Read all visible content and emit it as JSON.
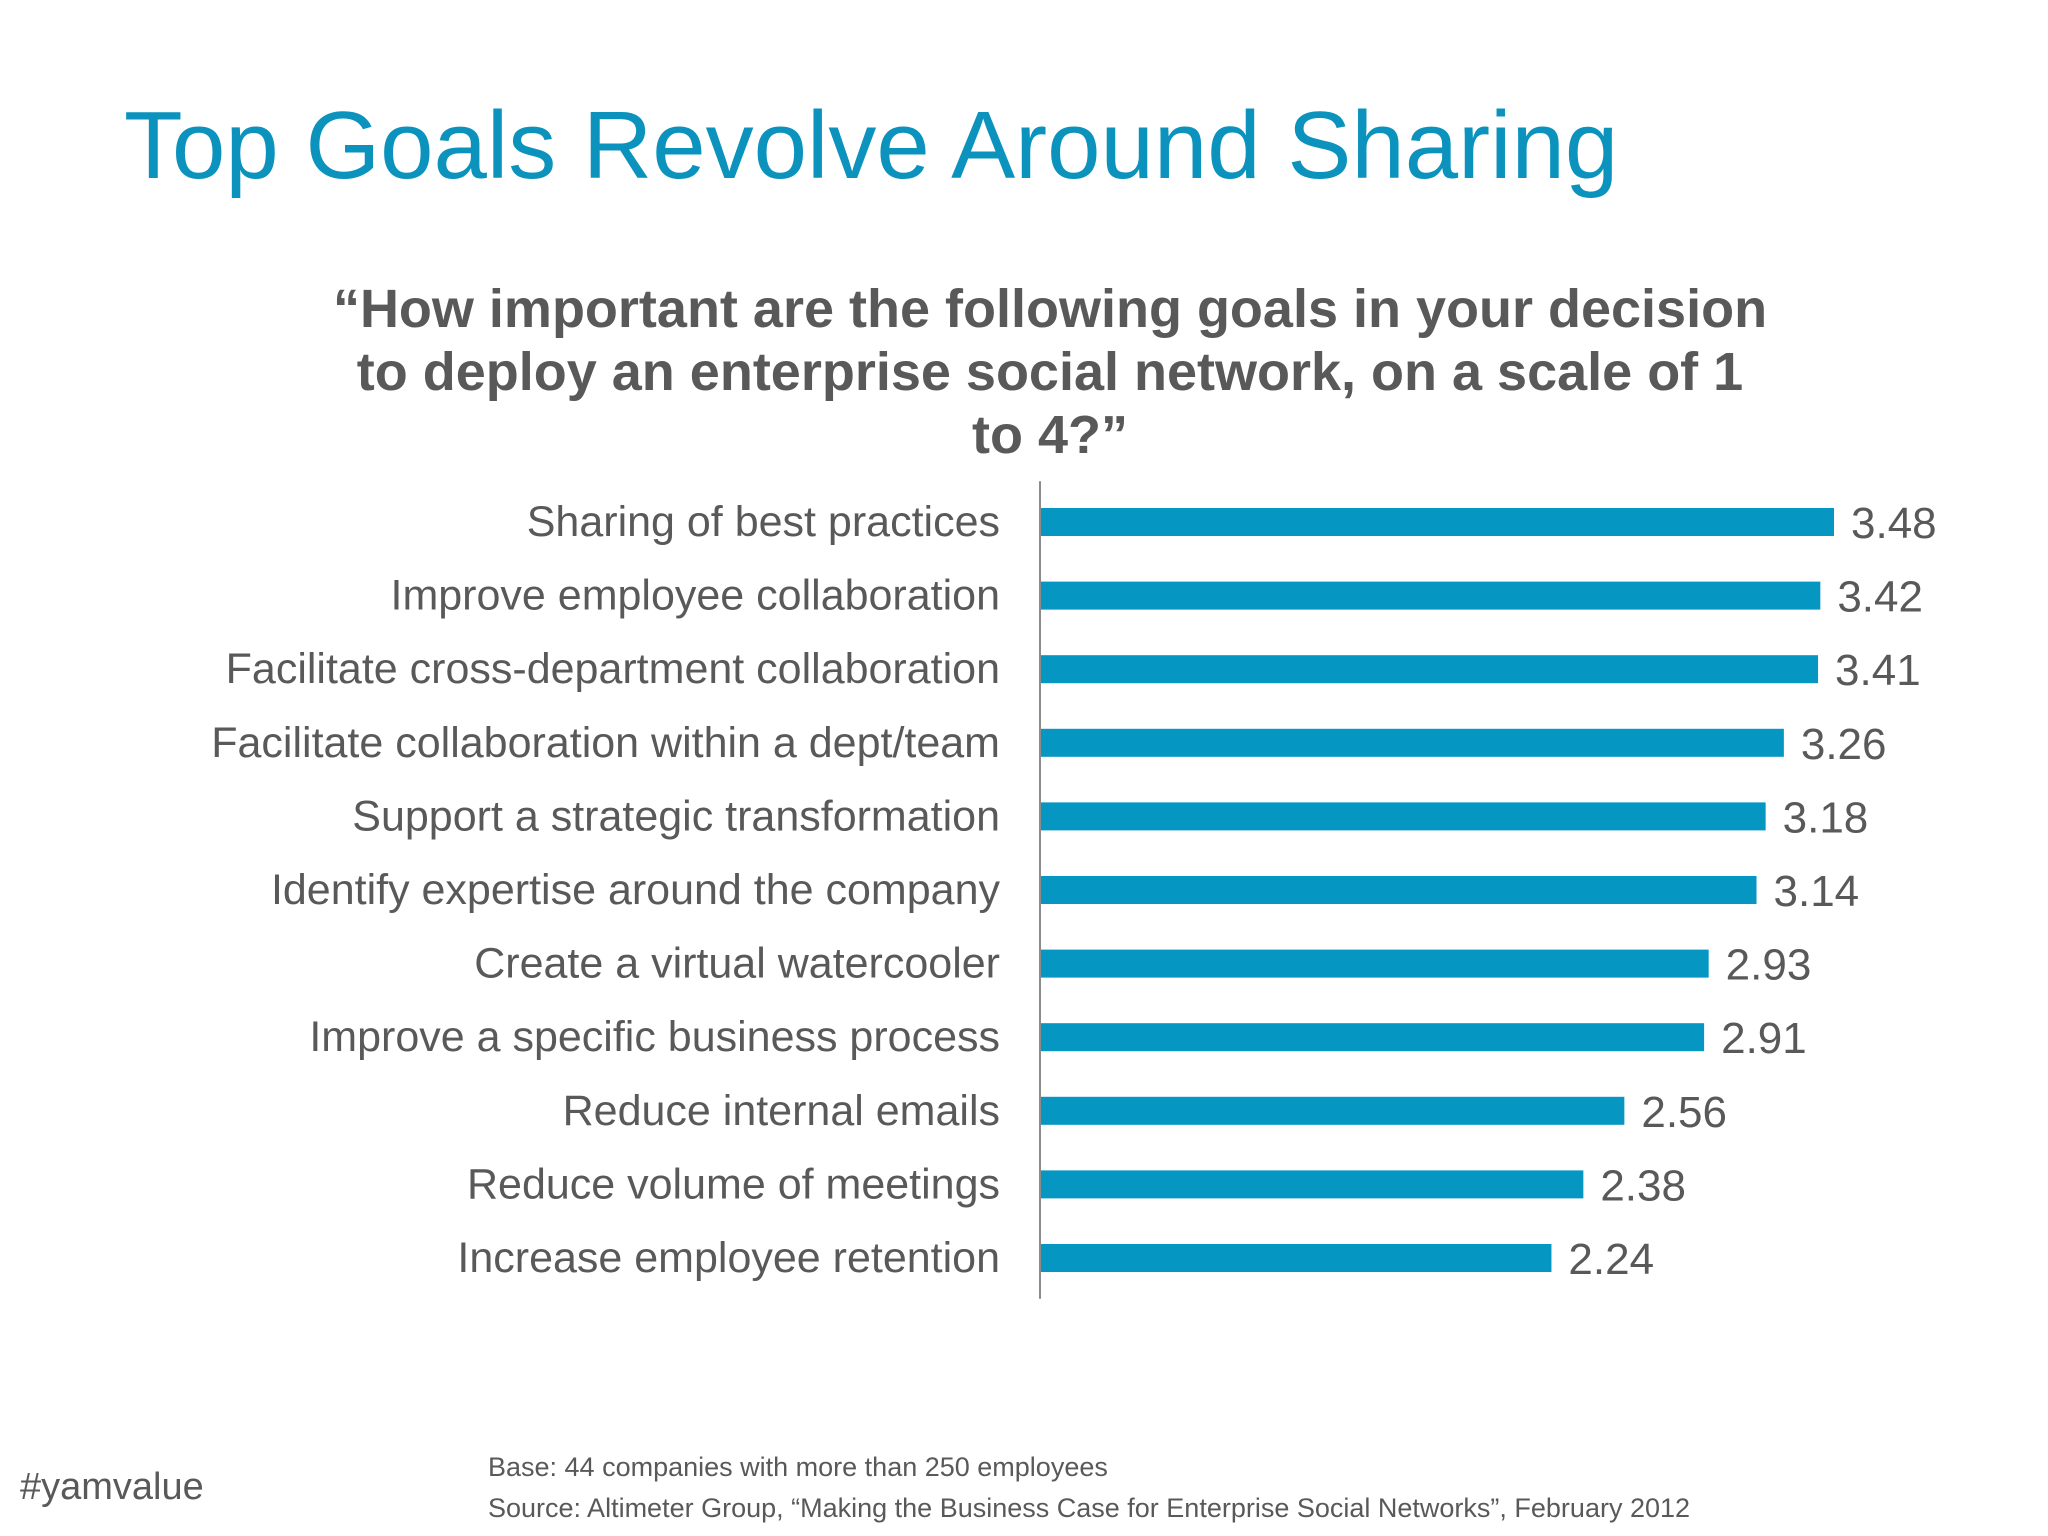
{
  "slide": {
    "title": "Top Goals Revolve Around Sharing",
    "title_color": "#0b93bd",
    "text_color": "#595959",
    "hashtag": "#yamvalue"
  },
  "footnotes": {
    "base": "Base: 44 companies with more than 250 employees",
    "source": "Source: Altimeter Group, “Making the Business Case for Enterprise Social Networks”, February 2012"
  },
  "chart_data": {
    "type": "bar",
    "orientation": "horizontal",
    "title_lines": [
      "“How important are the following goals in your decision",
      "to deploy an enterprise social network, on a scale of 1",
      "to 4?”"
    ],
    "categories": [
      "Sharing of best practices",
      "Improve employee collaboration",
      "Facilitate cross-department collaboration",
      "Facilitate collaboration within a dept/team",
      "Support a strategic transformation",
      "Identify expertise around the company",
      "Create a virtual watercooler",
      "Improve a specific business process",
      "Reduce internal emails",
      "Reduce volume of meetings",
      "Increase employee retention"
    ],
    "values": [
      3.48,
      3.42,
      3.41,
      3.26,
      3.18,
      3.14,
      2.93,
      2.91,
      2.56,
      2.38,
      2.24
    ],
    "data_labels": [
      "3.48",
      "3.42",
      "3.41",
      "3.26",
      "3.18",
      "3.14",
      "2.93",
      "2.91",
      "2.56",
      "2.38",
      "2.24"
    ],
    "xlim": [
      0,
      3.48
    ],
    "bar_color": "#0596c2",
    "axis_color": "#8c8c8c",
    "label_color": "#595959",
    "grid": false,
    "legend": "none"
  }
}
